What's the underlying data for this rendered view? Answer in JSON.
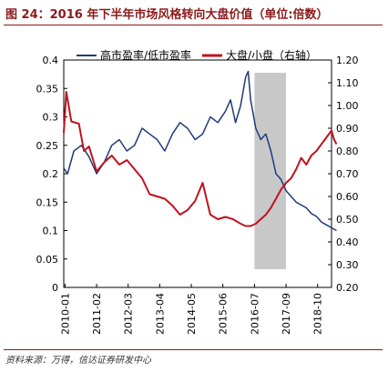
{
  "figure": {
    "title": "图 24：2016 年下半年市场风格转向大盘价值（单位:倍数）",
    "source": "资料来源：万得，信达证券研发中心"
  },
  "colors": {
    "series_blue": "#1f3a7a",
    "series_red": "#c0121c",
    "shade": "#c8c8c8",
    "accent": "#8b1a1a"
  },
  "chart_data": {
    "type": "line",
    "x_tick_labels": [
      "2010-01",
      "2011-02",
      "2012-03",
      "2013-04",
      "2014-05",
      "2015-06",
      "2016-07",
      "2017-09",
      "2018-10"
    ],
    "y_left": {
      "ticks": [
        "0",
        "0.05",
        "0.1",
        "0.15",
        "0.2",
        "0.25",
        "0.3",
        "0.35",
        "0.4"
      ],
      "min": 0,
      "max": 0.4
    },
    "y_right": {
      "ticks": [
        "0.20",
        "0.30",
        "0.40",
        "0.50",
        "0.60",
        "0.70",
        "0.80",
        "0.90",
        "1.00",
        "1.10",
        "1.20"
      ],
      "min": 0.2,
      "max": 1.2
    },
    "shaded_range": [
      "2016-07",
      "2017-09"
    ],
    "legend_position": "top",
    "series": [
      {
        "name": "高市盈率/低市盈率",
        "axis": "left",
        "color": "#1f3a7a",
        "x": [
          0,
          1.5,
          4,
          7,
          10,
          13,
          16,
          19,
          22,
          25,
          28,
          31,
          34,
          37,
          40,
          43,
          46,
          49,
          52,
          55,
          58,
          61,
          64,
          66,
          68,
          70,
          72,
          73,
          74,
          76,
          78,
          80,
          82,
          84,
          86,
          88,
          90,
          92,
          94,
          96,
          98,
          100,
          102,
          104,
          106,
          108
        ],
        "y": [
          0.21,
          0.2,
          0.24,
          0.25,
          0.23,
          0.2,
          0.22,
          0.25,
          0.26,
          0.24,
          0.25,
          0.28,
          0.27,
          0.26,
          0.24,
          0.27,
          0.29,
          0.28,
          0.26,
          0.27,
          0.3,
          0.29,
          0.31,
          0.33,
          0.29,
          0.32,
          0.37,
          0.38,
          0.33,
          0.28,
          0.26,
          0.27,
          0.24,
          0.2,
          0.19,
          0.17,
          0.16,
          0.15,
          0.145,
          0.14,
          0.13,
          0.125,
          0.115,
          0.11,
          0.105,
          0.1
        ]
      },
      {
        "name": "大盘/小盘（右轴）",
        "axis": "right",
        "color": "#c0121c",
        "x": [
          0,
          1,
          3,
          6,
          8,
          10,
          13,
          16,
          19,
          22,
          25,
          28,
          31,
          34,
          37,
          40,
          43,
          46,
          49,
          52,
          55,
          58,
          61,
          64,
          67,
          70,
          72,
          74,
          76,
          78,
          80,
          82,
          84,
          86,
          88,
          90,
          92,
          94,
          96,
          98,
          100,
          102,
          104,
          106,
          107,
          108
        ],
        "y": [
          0.88,
          1.06,
          0.93,
          0.92,
          0.8,
          0.82,
          0.71,
          0.75,
          0.78,
          0.74,
          0.76,
          0.72,
          0.68,
          0.61,
          0.6,
          0.59,
          0.56,
          0.52,
          0.54,
          0.58,
          0.66,
          0.52,
          0.5,
          0.51,
          0.5,
          0.48,
          0.47,
          0.47,
          0.48,
          0.5,
          0.52,
          0.55,
          0.59,
          0.63,
          0.66,
          0.68,
          0.72,
          0.77,
          0.74,
          0.78,
          0.8,
          0.83,
          0.86,
          0.89,
          0.85,
          0.83
        ]
      }
    ]
  }
}
